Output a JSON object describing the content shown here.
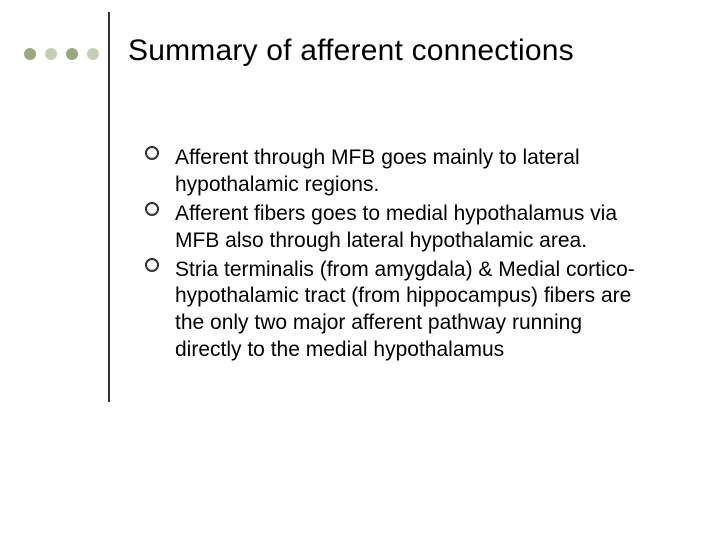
{
  "slide": {
    "title": "Summary of afferent connections",
    "dots": {
      "colors": [
        "#9aa87f",
        "#c6cfb4",
        "#9aa87f",
        "#c6cfb4"
      ]
    },
    "vline_color": "#333333",
    "bullet_border_color": "#333333",
    "background_color": "#ffffff",
    "title_fontsize": 30,
    "body_fontsize": 21,
    "text_color": "#000000",
    "items": [
      "Afferent through MFB goes mainly to lateral hypothalamic regions.",
      "Afferent fibers goes to medial hypothalamus via MFB also through lateral hypothalamic area.",
      "Stria terminalis (from amygdala) & Medial cortico-hypothalamic tract (from hippocampus) fibers are the only two major afferent pathway running directly to the medial hypothalamus"
    ]
  }
}
